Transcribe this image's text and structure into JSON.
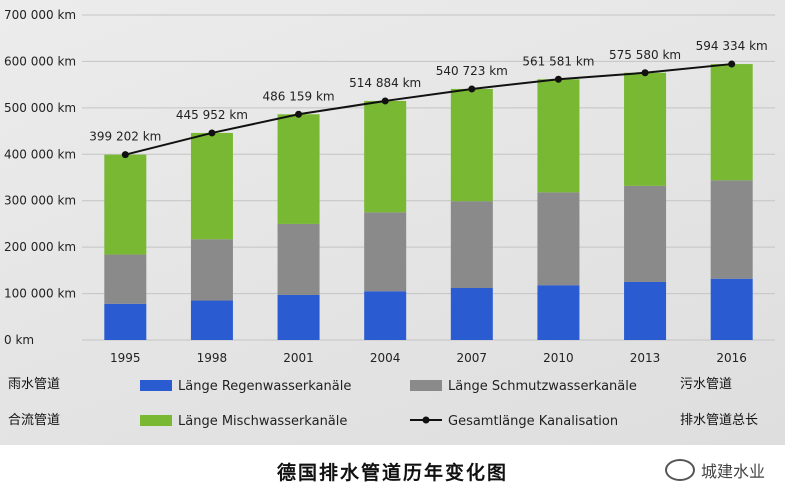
{
  "chart_data": {
    "type": "bar",
    "stacked": true,
    "categories": [
      "1995",
      "1998",
      "2001",
      "2004",
      "2007",
      "2010",
      "2013",
      "2016"
    ],
    "series": [
      {
        "name": "Länge Regenwasserkanäle",
        "type": "bar",
        "color": "#2a5bd0",
        "values": [
          78000,
          85000,
          97000,
          105000,
          112000,
          118000,
          125000,
          132000
        ]
      },
      {
        "name": "Länge Schmutzwasserkanäle",
        "type": "bar",
        "color": "#8a8a8a",
        "values": [
          106000,
          132000,
          153000,
          170000,
          187000,
          200000,
          207000,
          212000
        ]
      },
      {
        "name": "Länge Mischwasserkanäle",
        "type": "bar",
        "color": "#78b833",
        "values": [
          215202,
          228952,
          236159,
          239884,
          241723,
          243581,
          243580,
          250334
        ]
      },
      {
        "name": "Gesamtlänge Kanalisation",
        "type": "line",
        "color": "#111111",
        "values": [
          399202,
          445952,
          486159,
          514884,
          540723,
          561581,
          575580,
          594334
        ]
      }
    ],
    "data_labels": [
      "399 202 km",
      "445 952 km",
      "486 159 km",
      "514 884 km",
      "540 723 km",
      "561 581 km",
      "575 580 km",
      "594 334 km"
    ],
    "y_ticks": [
      "0 km",
      "100 000 km",
      "200 000 km",
      "300 000 km",
      "400 000 km",
      "500 000 km",
      "600 000 km",
      "700 000 km"
    ],
    "ylim": [
      0,
      700000
    ],
    "title": "德国排水管道历年变化图",
    "xlabel": "",
    "ylabel": "",
    "grid": true,
    "legend_position": "bottom"
  },
  "legend_cn": {
    "rain": "雨水管道",
    "combined": "合流管道",
    "sewage": "污水管道",
    "total": "排水管道总长"
  },
  "caption": "德国排水管道历年变化图",
  "watermark": "城建水业"
}
